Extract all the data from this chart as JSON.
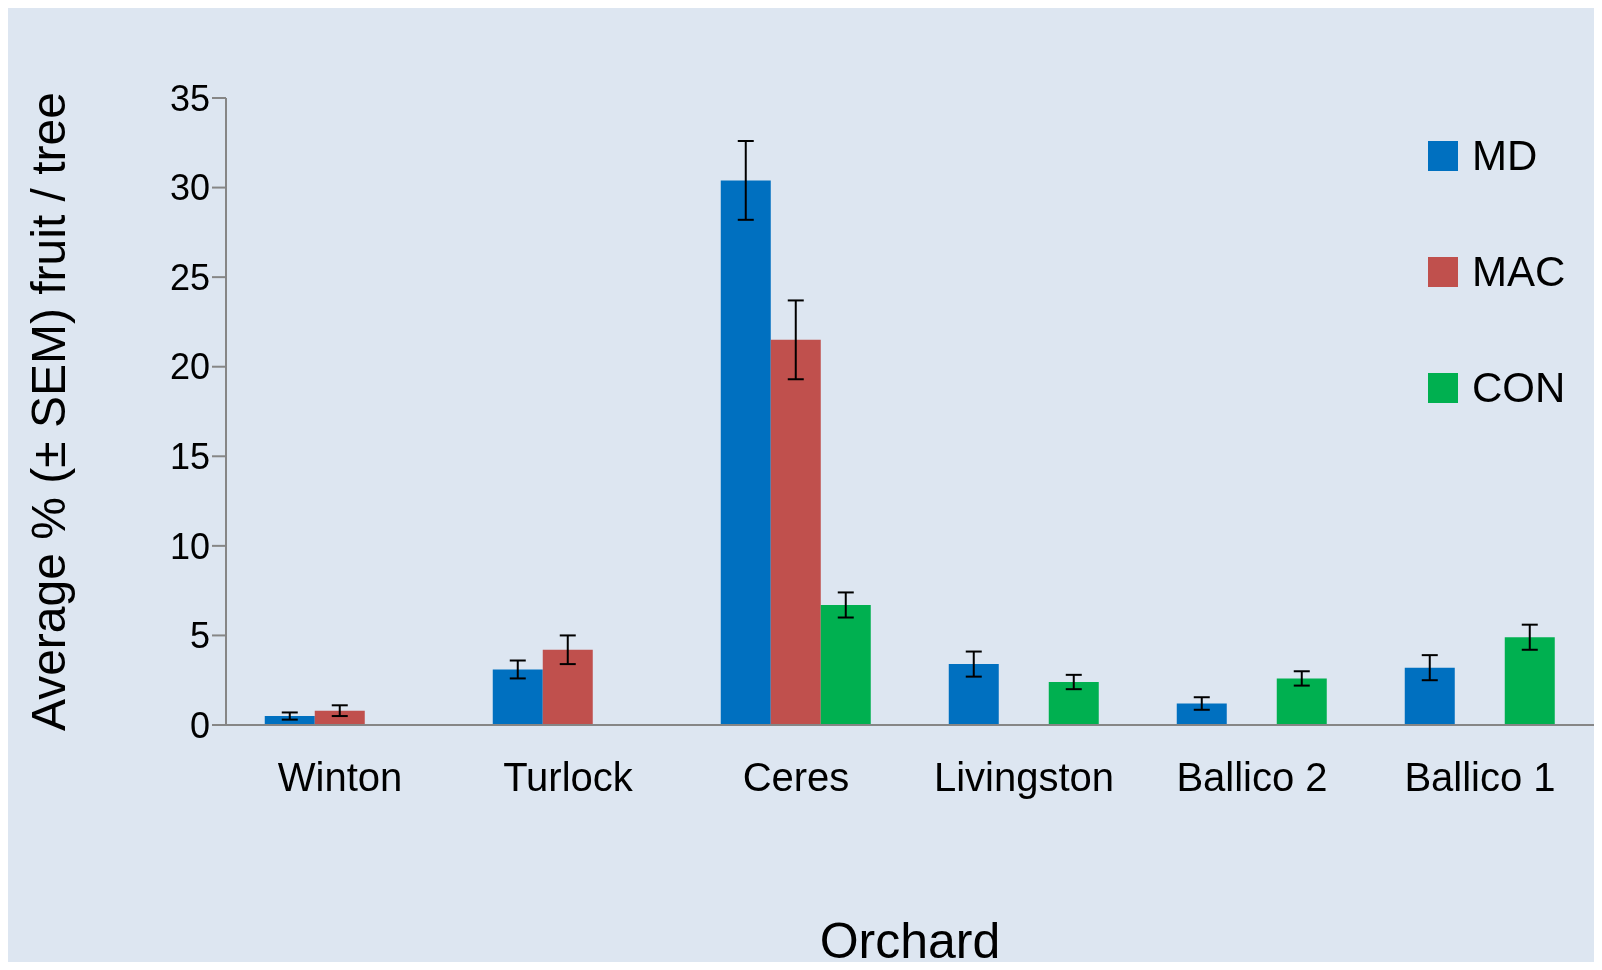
{
  "chart_data": {
    "type": "bar",
    "xlabel": "Orchard",
    "ylabel": "Average % (± SEM) fruit / tree",
    "categories": [
      "Winton",
      "Turlock",
      "Ceres",
      "Livingston",
      "Ballico 2",
      "Ballico 1"
    ],
    "series": [
      {
        "name": "MD",
        "color": "#0070c0",
        "values": [
          0.5,
          3.1,
          30.4,
          3.4,
          1.2,
          3.2
        ],
        "errors": [
          0.2,
          0.5,
          2.2,
          0.7,
          0.35,
          0.7
        ]
      },
      {
        "name": "MAC",
        "color": "#c0504d",
        "values": [
          0.8,
          4.2,
          21.5,
          null,
          null,
          null
        ],
        "errors": [
          0.3,
          0.8,
          2.2,
          null,
          null,
          null
        ]
      },
      {
        "name": "CON",
        "color": "#00b050",
        "values": [
          null,
          null,
          6.7,
          2.4,
          2.6,
          4.9
        ],
        "errors": [
          null,
          null,
          0.7,
          0.4,
          0.4,
          0.7
        ]
      }
    ],
    "ylim": [
      0,
      35
    ],
    "yticks": [
      0,
      5,
      10,
      15,
      20,
      25,
      30,
      35
    ],
    "grid": false,
    "legend": "top right"
  }
}
